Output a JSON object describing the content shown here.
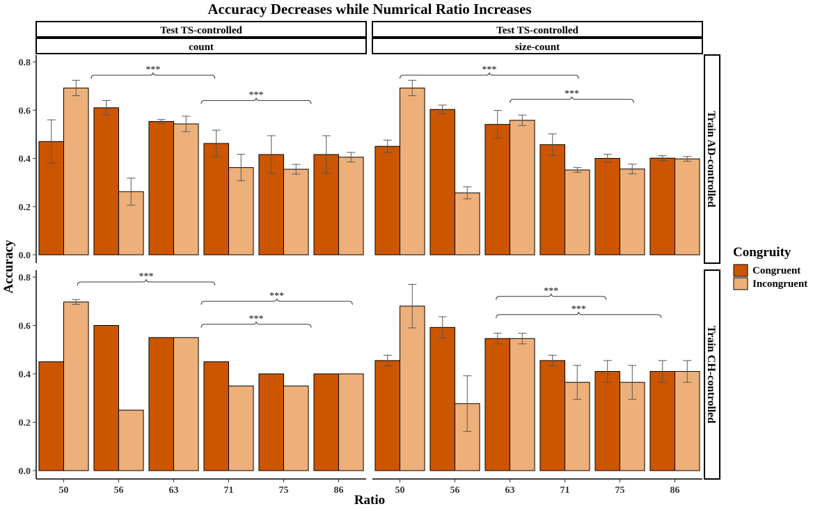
{
  "chart_data": {
    "type": "bar",
    "title": "Accuracy Decreases while Numrical Ratio Increases",
    "xlabel": "Ratio",
    "ylabel": "Accuracy",
    "categories": [
      "50",
      "56",
      "63",
      "71",
      "75",
      "86"
    ],
    "ylim": [
      0,
      0.8
    ],
    "yticks": [
      "0.0",
      "0.2",
      "0.4",
      "0.6",
      "0.8"
    ],
    "grid": false,
    "legend": {
      "title": "Congruity",
      "position": "right",
      "items": [
        {
          "name": "Congruent",
          "color": "#CC5500"
        },
        {
          "name": "Incongruent",
          "color": "#EDB07A"
        }
      ]
    },
    "column_strips": [
      {
        "top": "Test TS-controlled",
        "bottom": "count"
      },
      {
        "top": "Test TS-controlled",
        "bottom": "size-count"
      }
    ],
    "row_strips": [
      "Train AD-controlled",
      "Train CH-controlled"
    ],
    "panels": [
      {
        "row": 0,
        "col": 0,
        "series": [
          {
            "name": "Congruent",
            "values": [
              0.47,
              0.61,
              0.553,
              0.462,
              0.416,
              0.416
            ],
            "errors": [
              0.09,
              0.03,
              0.008,
              0.055,
              0.078,
              0.078
            ]
          },
          {
            "name": "Incongruent",
            "values": [
              0.692,
              0.262,
              0.543,
              0.362,
              0.355,
              0.405
            ],
            "errors": [
              0.032,
              0.056,
              0.032,
              0.055,
              0.02,
              0.02
            ]
          }
        ],
        "annotations": [
          {
            "label": "***",
            "from": 0.5,
            "to": 2.75,
            "y": 0.745
          },
          {
            "label": "***",
            "from": 2.5,
            "to": 4.5,
            "y": 0.64
          }
        ]
      },
      {
        "row": 0,
        "col": 1,
        "series": [
          {
            "name": "Congruent",
            "values": [
              0.45,
              0.603,
              0.541,
              0.457,
              0.4,
              0.401
            ],
            "errors": [
              0.026,
              0.018,
              0.058,
              0.045,
              0.017,
              0.01
            ]
          },
          {
            "name": "Incongruent",
            "values": [
              0.692,
              0.257,
              0.558,
              0.352,
              0.356,
              0.398
            ],
            "errors": [
              0.032,
              0.025,
              0.022,
              0.01,
              0.02,
              0.01
            ]
          }
        ],
        "annotations": [
          {
            "label": "***",
            "from": 0.0,
            "to": 3.25,
            "y": 0.745
          },
          {
            "label": "***",
            "from": 2.0,
            "to": 4.25,
            "y": 0.645
          }
        ]
      },
      {
        "row": 1,
        "col": 0,
        "series": [
          {
            "name": "Congruent",
            "values": [
              0.45,
              0.6,
              0.55,
              0.45,
              0.4,
              0.4
            ],
            "errors": [
              0,
              0,
              0,
              0,
              0,
              0
            ]
          },
          {
            "name": "Incongruent",
            "values": [
              0.697,
              0.25,
              0.55,
              0.35,
              0.35,
              0.4
            ],
            "errors": [
              0.01,
              0,
              0,
              0,
              0,
              0
            ]
          }
        ],
        "annotations": [
          {
            "label": "***",
            "from": 0.25,
            "to": 2.75,
            "y": 0.78
          },
          {
            "label": "***",
            "from": 2.5,
            "to": 5.25,
            "y": 0.7
          },
          {
            "label": "***",
            "from": 2.5,
            "to": 4.5,
            "y": 0.605
          }
        ]
      },
      {
        "row": 1,
        "col": 1,
        "series": [
          {
            "name": "Congruent",
            "values": [
              0.455,
              0.592,
              0.546,
              0.455,
              0.41,
              0.41
            ],
            "errors": [
              0.022,
              0.044,
              0.022,
              0.022,
              0.045,
              0.045
            ]
          },
          {
            "name": "Incongruent",
            "values": [
              0.68,
              0.277,
              0.546,
              0.365,
              0.365,
              0.41
            ],
            "errors": [
              0.09,
              0.115,
              0.022,
              0.07,
              0.07,
              0.045
            ]
          }
        ],
        "annotations": [
          {
            "label": "***",
            "from": 1.75,
            "to": 3.75,
            "y": 0.72
          },
          {
            "label": "***",
            "from": 1.75,
            "to": 4.75,
            "y": 0.645
          }
        ]
      }
    ]
  }
}
